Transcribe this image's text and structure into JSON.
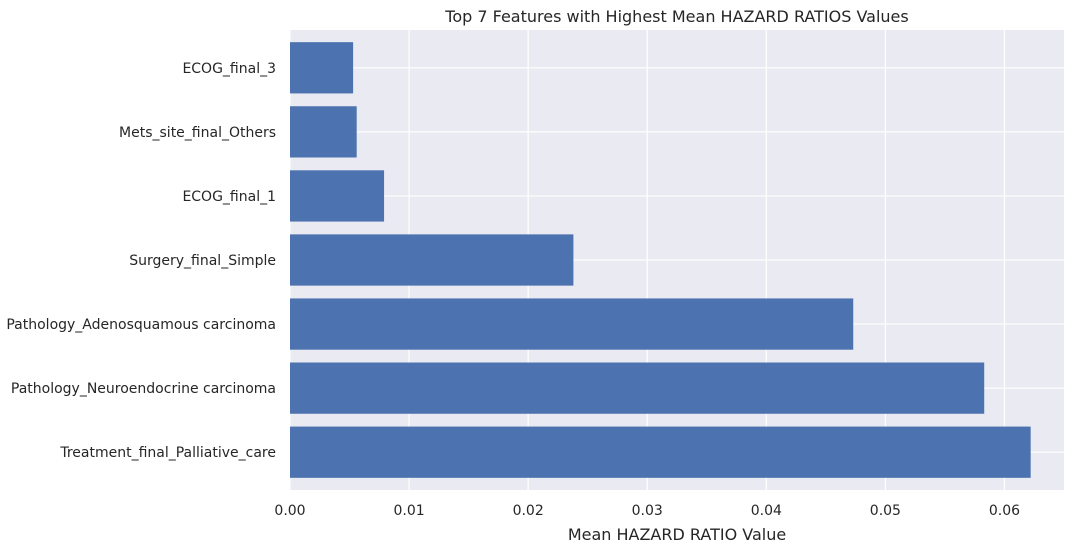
{
  "chart_data": {
    "type": "bar",
    "orientation": "horizontal",
    "title": "Top 7 Features with Highest Mean HAZARD RATIOS Values",
    "xlabel": "Mean HAZARD RATIO Value",
    "ylabel": "",
    "categories": [
      "Treatment_final_Palliative_care",
      "Pathology_Neuroendocrine carcinoma",
      "Pathology_Adenosquamous carcinoma",
      "Surgery_final_Simple",
      "ECOG_final_1",
      "Mets_site_final_Others",
      "ECOG_final_3"
    ],
    "values": [
      0.0622,
      0.0583,
      0.0473,
      0.0238,
      0.0079,
      0.0056,
      0.0053
    ],
    "xlim": [
      0,
      0.065
    ],
    "xticks": [
      0.0,
      0.01,
      0.02,
      0.03,
      0.04,
      0.05,
      0.06
    ],
    "xtick_labels": [
      "0.00",
      "0.01",
      "0.02",
      "0.03",
      "0.04",
      "0.05",
      "0.06"
    ],
    "grid": true,
    "colors": {
      "bar": "#4c72b0",
      "background": "#eaeaf2",
      "grid": "#ffffff",
      "text": "#262626"
    }
  }
}
